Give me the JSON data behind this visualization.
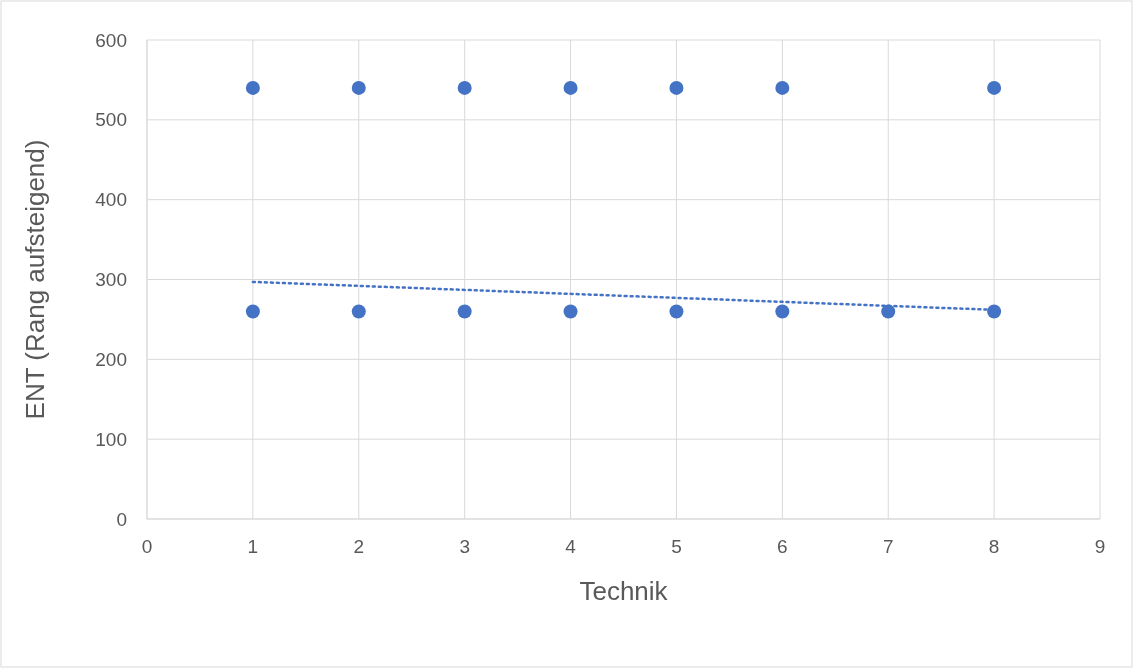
{
  "chart_data": {
    "type": "scatter",
    "xlabel": "Technik",
    "ylabel": "ENT (Rang aufsteigend)",
    "xlim": [
      0,
      9
    ],
    "xticks": [
      0,
      1,
      2,
      3,
      4,
      5,
      6,
      7,
      8,
      9
    ],
    "ylim": [
      0,
      600
    ],
    "yticks": [
      0,
      100,
      200,
      300,
      400,
      500,
      600
    ],
    "grid": true,
    "marker": "circle",
    "series": [
      {
        "color": "#4472c4",
        "x": [
          1,
          2,
          3,
          4,
          5,
          6,
          8,
          1,
          2,
          3,
          4,
          5,
          6,
          7,
          8
        ],
        "values": [
          540,
          540,
          540,
          540,
          540,
          540,
          540,
          260,
          260,
          260,
          260,
          260,
          260,
          260,
          260
        ]
      },
      {
        "type": "line",
        "color": "#4472c4",
        "line_style": "dotted",
        "marker": "none",
        "x": [
          1,
          8
        ],
        "values": [
          297,
          262
        ]
      }
    ]
  }
}
